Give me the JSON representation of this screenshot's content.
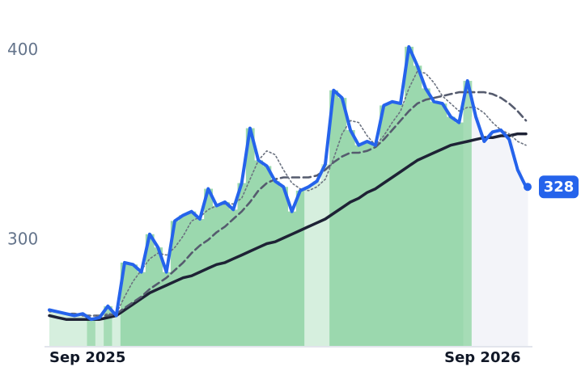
{
  "chart_data": {
    "type": "line",
    "categories": [
      "Sep 2025",
      null,
      null,
      null,
      null,
      null,
      null,
      null,
      null,
      null,
      null,
      null,
      null,
      null,
      null,
      null,
      null,
      null,
      null,
      null,
      null,
      null,
      null,
      null,
      null,
      null,
      null,
      null,
      null,
      null,
      null,
      null,
      null,
      null,
      null,
      null,
      null,
      null,
      null,
      null,
      null,
      null,
      null,
      null,
      null,
      null,
      null,
      null,
      null,
      null,
      null,
      null,
      "Sep 2026",
      null,
      null,
      null,
      null,
      null
    ],
    "ylim": [
      244,
      422
    ],
    "yticks": [
      300,
      400
    ],
    "series": [
      {
        "color": "#2563eb",
        "width": 4,
        "dash": "none",
        "values": [
          263,
          262,
          261,
          260,
          261,
          258,
          259,
          265,
          260,
          288,
          287,
          283,
          303,
          296,
          283,
          310,
          313,
          315,
          311,
          327,
          318,
          320,
          316,
          330,
          359,
          342,
          339,
          331,
          328,
          315,
          326,
          328,
          331,
          340,
          379,
          375,
          358,
          350,
          352,
          350,
          371,
          373,
          372,
          402,
          392,
          380,
          373,
          372,
          365,
          362,
          384,
          365,
          352,
          357,
          358,
          353,
          337,
          328
        ]
      },
      {
        "color": "#6b7280",
        "width": 1.6,
        "dash": "2 3",
        "values": [
          262,
          262,
          261,
          261,
          260,
          260,
          260,
          261,
          261,
          270,
          278,
          284,
          290,
          293,
          292,
          296,
          302,
          310,
          312,
          316,
          318,
          319,
          319,
          322,
          332,
          342,
          347,
          345,
          337,
          330,
          327,
          326,
          328,
          332,
          343,
          356,
          363,
          362,
          355,
          350,
          355,
          362,
          368,
          380,
          389,
          388,
          383,
          376,
          372,
          368,
          370,
          370,
          367,
          362,
          358,
          356,
          352,
          350
        ]
      },
      {
        "color": "#555b6e",
        "width": 2.6,
        "dash": "9 5",
        "values": [
          263,
          262,
          261,
          261,
          260,
          260,
          260,
          260,
          261,
          264,
          267,
          270,
          274,
          277,
          280,
          284,
          288,
          293,
          297,
          300,
          304,
          307,
          311,
          315,
          320,
          326,
          330,
          332,
          333,
          333,
          333,
          333,
          334,
          337,
          341,
          344,
          346,
          346,
          347,
          349,
          353,
          358,
          363,
          368,
          372,
          374,
          375,
          376,
          377,
          378,
          378,
          378,
          378,
          377,
          375,
          372,
          368,
          363
        ]
      },
      {
        "color": "#1e2235",
        "width": 3.5,
        "dash": "none",
        "values": [
          260,
          259,
          258,
          258,
          258,
          258,
          258,
          259,
          260,
          263,
          266,
          269,
          272,
          274,
          276,
          278,
          280,
          281,
          283,
          285,
          287,
          288,
          290,
          292,
          294,
          296,
          298,
          299,
          301,
          303,
          305,
          307,
          309,
          311,
          314,
          317,
          320,
          322,
          325,
          327,
          330,
          333,
          336,
          339,
          342,
          344,
          346,
          348,
          350,
          351,
          352,
          353,
          354,
          354,
          355,
          355,
          356,
          356
        ]
      }
    ],
    "bar_colors": [
      "#d6efde",
      "#d6efde",
      "#d6efde",
      "#d6efde",
      "#d6efde",
      "#a6dcb6",
      "#d6efde",
      "#a6dcb6",
      "#d6efde",
      "#9bd8ae",
      "#9bd8ae",
      "#9bd8ae",
      "#9bd8ae",
      "#9bd8ae",
      "#9bd8ae",
      "#9bd8ae",
      "#9bd8ae",
      "#9bd8ae",
      "#9bd8ae",
      "#9bd8ae",
      "#9bd8ae",
      "#9bd8ae",
      "#9bd8ae",
      "#9bd8ae",
      "#9bd8ae",
      "#9bd8ae",
      "#9bd8ae",
      "#9bd8ae",
      "#9bd8ae",
      "#9bd8ae",
      "#9bd8ae",
      "#d6efde",
      "#d6efde",
      "#d6efde",
      "#9bd8ae",
      "#9bd8ae",
      "#9bd8ae",
      "#9bd8ae",
      "#9bd8ae",
      "#9bd8ae",
      "#9bd8ae",
      "#9bd8ae",
      "#9bd8ae",
      "#9bd8ae",
      "#9bd8ae",
      "#9bd8ae",
      "#9bd8ae",
      "#9bd8ae",
      "#9bd8ae",
      "#9bd8ae",
      "#a6dcb6",
      "#f3f4f9",
      "#f3f4f9",
      "#f3f4f9",
      "#f3f4f9",
      "#f3f4f9",
      "#f3f4f9",
      "#f3f4f9"
    ],
    "last_value_label": true
  }
}
